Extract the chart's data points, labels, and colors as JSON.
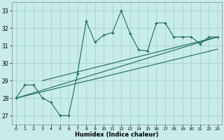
{
  "xlabel": "Humidex (Indice chaleur)",
  "ylabel": "",
  "background_color": "#c8ecea",
  "line_color": "#1a6b5a",
  "xlim": [
    -0.5,
    23.5
  ],
  "ylim": [
    26.5,
    33.5
  ],
  "yticks": [
    27,
    28,
    29,
    30,
    31,
    32,
    33
  ],
  "xticks": [
    0,
    1,
    2,
    3,
    4,
    5,
    6,
    7,
    8,
    9,
    10,
    11,
    12,
    13,
    14,
    15,
    16,
    17,
    18,
    19,
    20,
    21,
    22,
    23
  ],
  "jagged_x": [
    0,
    1,
    2,
    3,
    4,
    5,
    6,
    7,
    8,
    9,
    10,
    11,
    12,
    13,
    14,
    15,
    16,
    17,
    18,
    19,
    20,
    21,
    22,
    23
  ],
  "jagged_y": [
    28.0,
    28.75,
    28.75,
    28.0,
    27.75,
    27.0,
    27.0,
    29.4,
    32.4,
    31.2,
    31.6,
    31.75,
    33.0,
    31.7,
    30.75,
    30.7,
    32.3,
    32.3,
    31.5,
    31.5,
    31.5,
    31.1,
    31.5,
    31.5
  ],
  "line1_x": [
    0,
    23
  ],
  "line1_y": [
    28.0,
    31.5
  ],
  "line2_x": [
    0,
    23
  ],
  "line2_y": [
    28.0,
    30.8
  ],
  "line3_x": [
    3,
    23
  ],
  "line3_y": [
    29.0,
    31.5
  ]
}
